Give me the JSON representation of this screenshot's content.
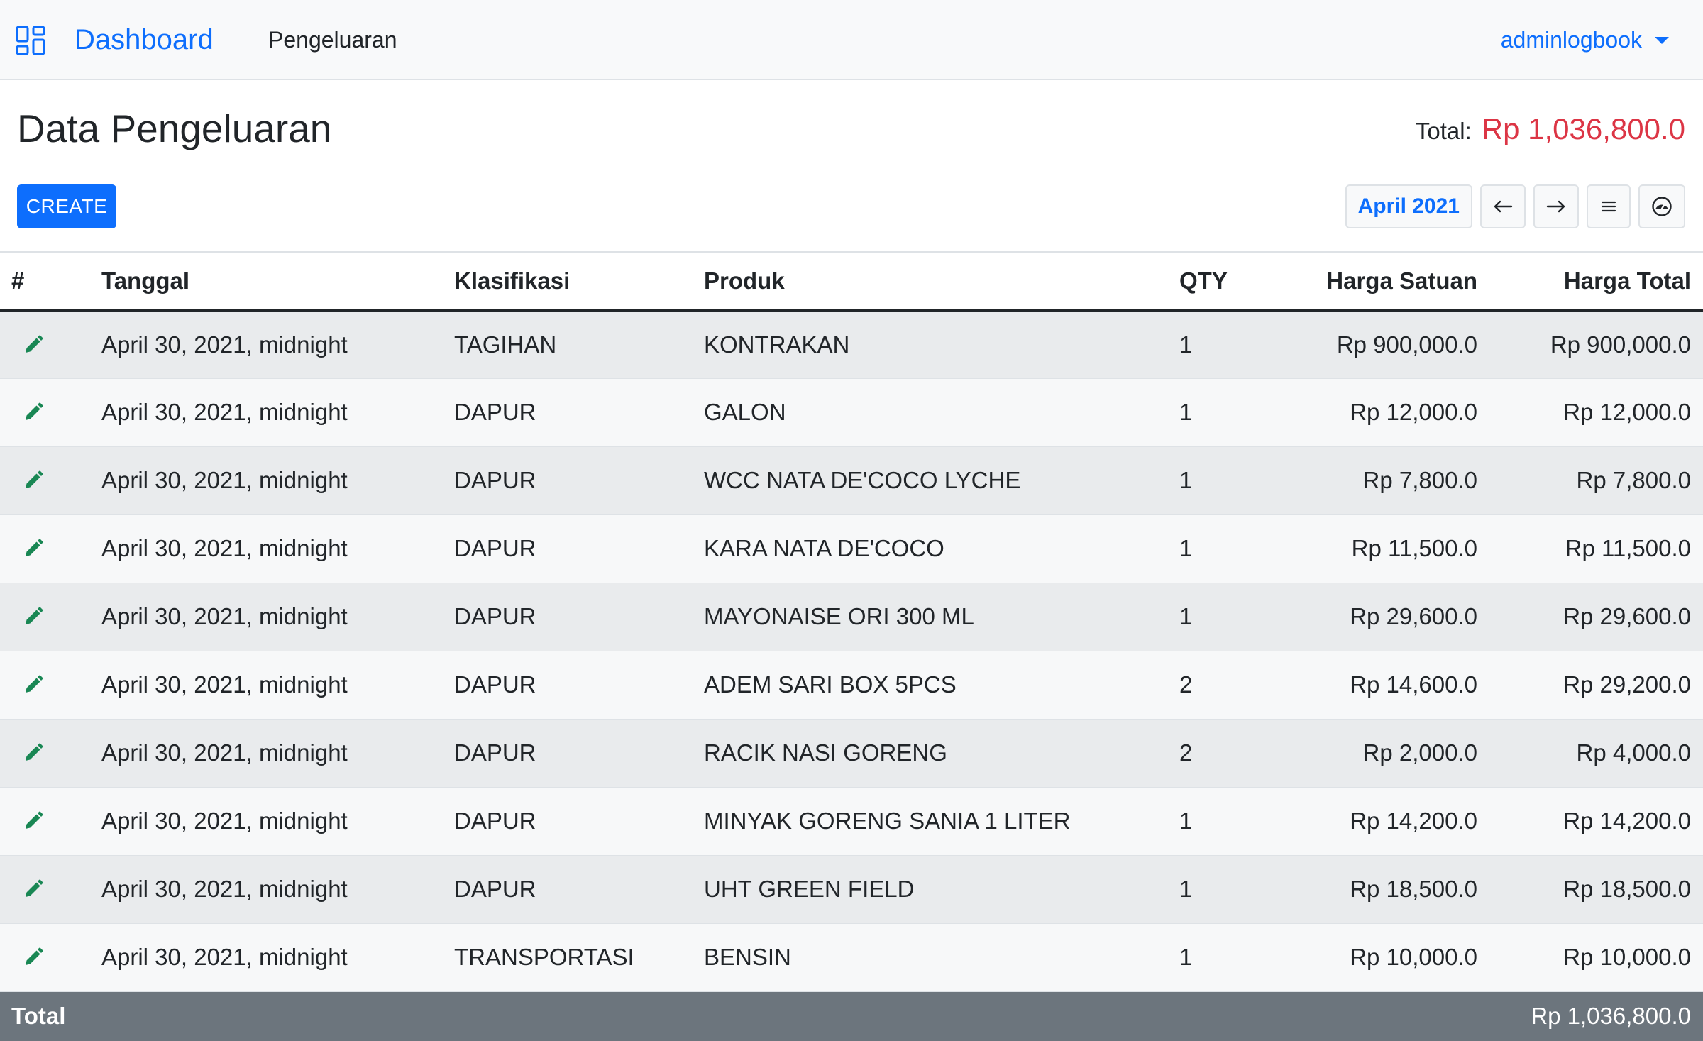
{
  "navbar": {
    "brand": "Dashboard",
    "link": "Pengeluaran",
    "user": "adminlogbook"
  },
  "header": {
    "title": "Data Pengeluaran",
    "total_label": "Total:",
    "total_value": "Rp 1,036,800.0"
  },
  "toolbar": {
    "create_label": "CREATE",
    "month": "April 2021",
    "icons": [
      "arrow-left-icon",
      "arrow-right-icon",
      "list-icon",
      "dashboard-gauge-icon"
    ]
  },
  "table": {
    "headers": [
      "#",
      "Tanggal",
      "Klasifikasi",
      "Produk",
      "QTY",
      "Harga Satuan",
      "Harga Total"
    ],
    "rows": [
      {
        "tanggal": "April 30, 2021, midnight",
        "klasifikasi": "TAGIHAN",
        "produk": "KONTRAKAN",
        "qty": "1",
        "harga_satuan": "Rp 900,000.0",
        "harga_total": "Rp 900,000.0"
      },
      {
        "tanggal": "April 30, 2021, midnight",
        "klasifikasi": "DAPUR",
        "produk": "GALON",
        "qty": "1",
        "harga_satuan": "Rp 12,000.0",
        "harga_total": "Rp 12,000.0"
      },
      {
        "tanggal": "April 30, 2021, midnight",
        "klasifikasi": "DAPUR",
        "produk": "WCC NATA DE'COCO LYCHE",
        "qty": "1",
        "harga_satuan": "Rp 7,800.0",
        "harga_total": "Rp 7,800.0"
      },
      {
        "tanggal": "April 30, 2021, midnight",
        "klasifikasi": "DAPUR",
        "produk": "KARA NATA DE'COCO",
        "qty": "1",
        "harga_satuan": "Rp 11,500.0",
        "harga_total": "Rp 11,500.0"
      },
      {
        "tanggal": "April 30, 2021, midnight",
        "klasifikasi": "DAPUR",
        "produk": "MAYONAISE ORI 300 ML",
        "qty": "1",
        "harga_satuan": "Rp 29,600.0",
        "harga_total": "Rp 29,600.0"
      },
      {
        "tanggal": "April 30, 2021, midnight",
        "klasifikasi": "DAPUR",
        "produk": "ADEM SARI BOX 5PCS",
        "qty": "2",
        "harga_satuan": "Rp 14,600.0",
        "harga_total": "Rp 29,200.0"
      },
      {
        "tanggal": "April 30, 2021, midnight",
        "klasifikasi": "DAPUR",
        "produk": "RACIK NASI GORENG",
        "qty": "2",
        "harga_satuan": "Rp 2,000.0",
        "harga_total": "Rp 4,000.0"
      },
      {
        "tanggal": "April 30, 2021, midnight",
        "klasifikasi": "DAPUR",
        "produk": "MINYAK GORENG SANIA 1 LITER",
        "qty": "1",
        "harga_satuan": "Rp 14,200.0",
        "harga_total": "Rp 14,200.0"
      },
      {
        "tanggal": "April 30, 2021, midnight",
        "klasifikasi": "DAPUR",
        "produk": "UHT GREEN FIELD",
        "qty": "1",
        "harga_satuan": "Rp 18,500.0",
        "harga_total": "Rp 18,500.0"
      },
      {
        "tanggal": "April 30, 2021, midnight",
        "klasifikasi": "TRANSPORTASI",
        "produk": "BENSIN",
        "qty": "1",
        "harga_satuan": "Rp 10,000.0",
        "harga_total": "Rp 10,000.0"
      }
    ],
    "footer": {
      "label": "Total",
      "value": "Rp 1,036,800.0"
    }
  },
  "colors": {
    "primary": "#0d6efd",
    "danger": "#dc3545",
    "edit_icon": "#198754",
    "footer_bg": "#6c757d"
  }
}
